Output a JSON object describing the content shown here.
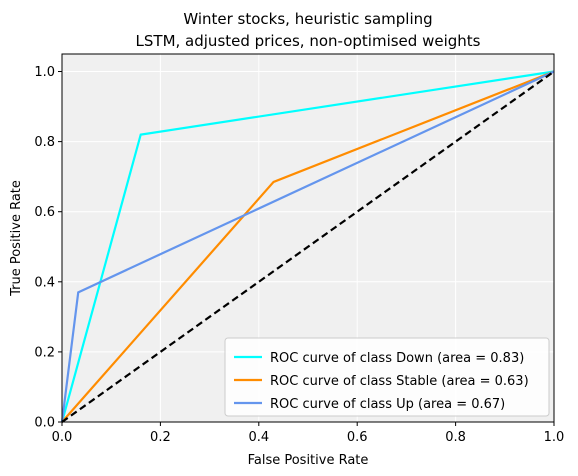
{
  "chart_data": {
    "type": "line",
    "title_line1": "Winter stocks, heuristic sampling",
    "title_line2": "LSTM, adjusted prices, non-optimised weights",
    "xlabel": "False Positive Rate",
    "ylabel": "True Positive Rate",
    "xlim": [
      0,
      1
    ],
    "ylim": [
      0,
      1.05
    ],
    "x_ticks": [
      "0.0",
      "0.2",
      "0.4",
      "0.6",
      "0.8",
      "1.0"
    ],
    "y_ticks": [
      "0.0",
      "0.2",
      "0.4",
      "0.6",
      "0.8",
      "1.0"
    ],
    "grid": true,
    "legend_position": "lower-right",
    "series": [
      {
        "name": "ROC curve of class Down (area = 0.83)",
        "color": "#00ffff",
        "points": [
          [
            0,
            0
          ],
          [
            0.16,
            0.82
          ],
          [
            1,
            1
          ]
        ]
      },
      {
        "name": "ROC curve of class Stable (area = 0.63)",
        "color": "#ff8c00",
        "points": [
          [
            0,
            0
          ],
          [
            0.43,
            0.685
          ],
          [
            1,
            1
          ]
        ]
      },
      {
        "name": "ROC curve of class Up (area = 0.67)",
        "color": "#6495ed",
        "points": [
          [
            0,
            0
          ],
          [
            0.033,
            0.37
          ],
          [
            1,
            1
          ]
        ]
      }
    ],
    "reference_line": {
      "color": "#000000",
      "style": "dashed",
      "points": [
        [
          0,
          0
        ],
        [
          1,
          1
        ]
      ]
    }
  }
}
